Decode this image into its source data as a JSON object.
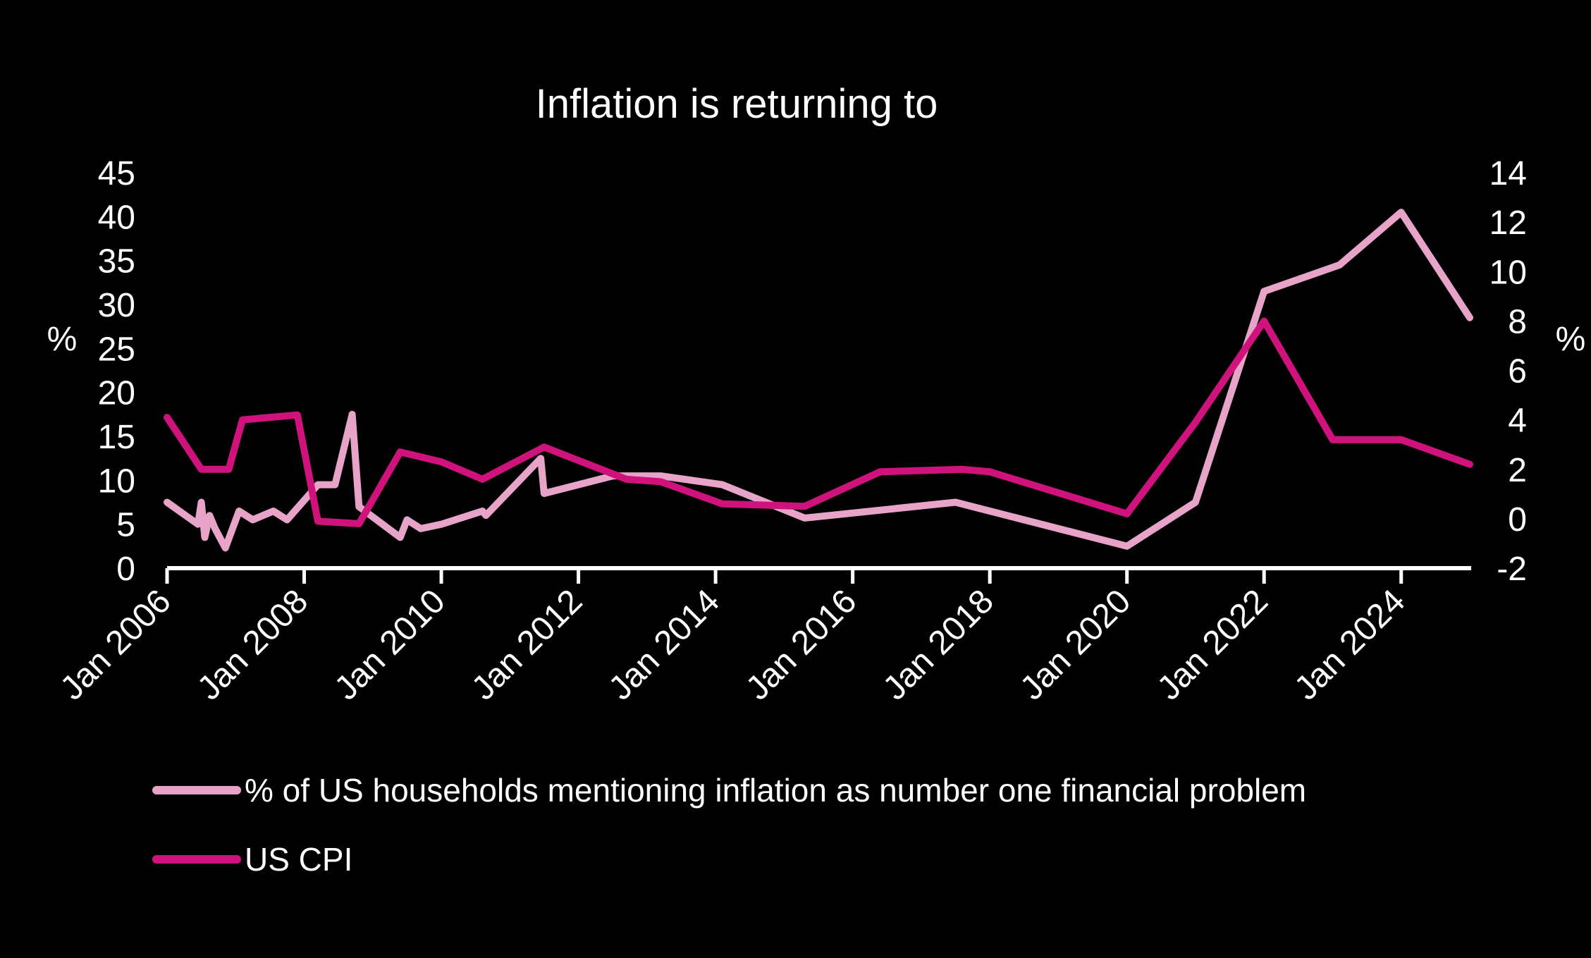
{
  "chart_data": {
    "type": "line",
    "title": "Inflation is returning to",
    "y_left": {
      "label": "%",
      "ticks": [
        "45",
        "40",
        "35",
        "30",
        "25",
        "20",
        "15",
        "10",
        "5",
        "0"
      ],
      "range": [
        0,
        45
      ]
    },
    "y_right": {
      "label": "%",
      "ticks": [
        "14",
        "12",
        "10",
        "8",
        "6",
        "4",
        "2",
        "0",
        "-2"
      ],
      "range": [
        -2,
        14
      ]
    },
    "x_ticks": [
      {
        "label": "Jan 2006",
        "x": 2006.0
      },
      {
        "label": "Jan 2008",
        "x": 2008.0
      },
      {
        "label": "Jan 2010",
        "x": 2010.0
      },
      {
        "label": "Jan 2012",
        "x": 2012.0
      },
      {
        "label": "Jan 2014",
        "x": 2014.0
      },
      {
        "label": "Jan 2016",
        "x": 2016.0
      },
      {
        "label": "Jan 2018",
        "x": 2018.0
      },
      {
        "label": "Jan 2020",
        "x": 2020.0
      },
      {
        "label": "Jan 2022",
        "x": 2022.0
      },
      {
        "label": "Jan 2024",
        "x": 2024.0
      }
    ],
    "x_range": [
      2006.0,
      2025.0
    ],
    "series": [
      {
        "name": "% of US households mentioning inflation as number one financial problem",
        "axis": "left",
        "color": "#e8a3c9",
        "points": [
          [
            2006.0,
            7.5
          ],
          [
            2006.45,
            5.0
          ],
          [
            2006.5,
            7.5
          ],
          [
            2006.55,
            3.5
          ],
          [
            2006.62,
            6.0
          ],
          [
            2006.7,
            4.5
          ],
          [
            2006.85,
            2.3
          ],
          [
            2007.05,
            6.5
          ],
          [
            2007.25,
            5.5
          ],
          [
            2007.55,
            6.5
          ],
          [
            2007.75,
            5.5
          ],
          [
            2008.2,
            9.5
          ],
          [
            2008.45,
            9.5
          ],
          [
            2008.7,
            17.5
          ],
          [
            2008.8,
            7.0
          ],
          [
            2009.4,
            3.5
          ],
          [
            2009.5,
            5.5
          ],
          [
            2009.7,
            4.5
          ],
          [
            2010.0,
            5.0
          ],
          [
            2010.6,
            6.5
          ],
          [
            2010.65,
            6.0
          ],
          [
            2011.45,
            12.5
          ],
          [
            2011.5,
            8.5
          ],
          [
            2012.5,
            10.5
          ],
          [
            2013.2,
            10.5
          ],
          [
            2014.1,
            9.5
          ],
          [
            2015.3,
            5.7
          ],
          [
            2017.5,
            7.5
          ],
          [
            2018.0,
            6.5
          ],
          [
            2020.0,
            2.5
          ],
          [
            2021.0,
            7.5
          ],
          [
            2022.0,
            31.5
          ],
          [
            2023.1,
            34.5
          ],
          [
            2024.0,
            40.5
          ],
          [
            2025.0,
            28.5
          ]
        ]
      },
      {
        "name": "US CPI",
        "axis": "right",
        "color": "#d0127d",
        "points": [
          [
            2006.0,
            4.1
          ],
          [
            2006.5,
            2.0
          ],
          [
            2006.9,
            2.0
          ],
          [
            2007.1,
            4.0
          ],
          [
            2007.9,
            4.2
          ],
          [
            2008.2,
            -0.1
          ],
          [
            2008.8,
            -0.2
          ],
          [
            2009.4,
            2.7
          ],
          [
            2010.0,
            2.3
          ],
          [
            2010.6,
            1.6
          ],
          [
            2011.5,
            2.9
          ],
          [
            2012.7,
            1.6
          ],
          [
            2013.2,
            1.5
          ],
          [
            2014.1,
            0.6
          ],
          [
            2015.3,
            0.5
          ],
          [
            2016.4,
            1.9
          ],
          [
            2017.6,
            2.0
          ],
          [
            2018.0,
            1.9
          ],
          [
            2020.0,
            0.2
          ],
          [
            2021.0,
            3.9
          ],
          [
            2022.0,
            8.0
          ],
          [
            2023.0,
            3.2
          ],
          [
            2024.0,
            3.2
          ],
          [
            2025.0,
            2.2
          ]
        ]
      }
    ],
    "legend": {
      "placement": "bottom",
      "items": [
        "% of US households mentioning inflation as number one financial problem",
        "US CPI"
      ]
    }
  }
}
